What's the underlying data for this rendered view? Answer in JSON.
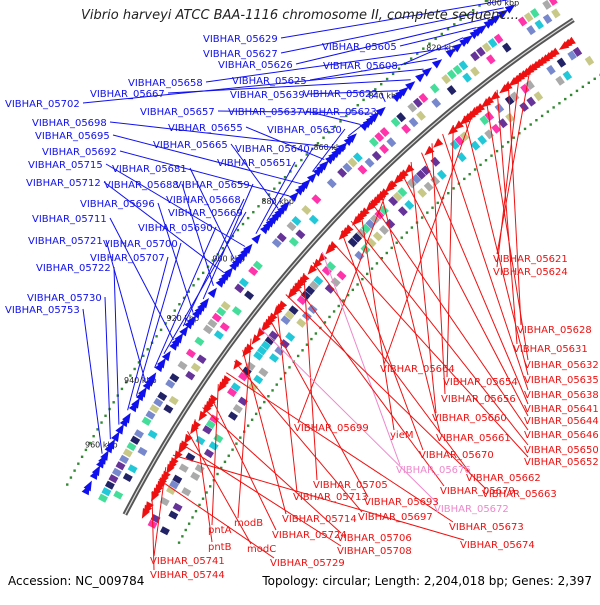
{
  "title": "Vibrio harveyi ATCC BAA-1116 chromosome II, complete sequenc...",
  "footer": {
    "accession": "Accession: NC_009784",
    "summary": "Topology: circular; Length: 2,204,018 bp; Genes: 2,397"
  },
  "colors": {
    "forward": "#1010ee",
    "reverse": "#ee1111",
    "pseudo": "#ee88cc",
    "axis": "#888888",
    "tick": "#338833",
    "feature_palette": [
      "#22c8d8",
      "#aaaaaa",
      "#ff33aa",
      "#7788cc",
      "#44dd99",
      "#222266",
      "#c8c888",
      "#663399"
    ]
  },
  "scale_labels": [
    "800 kbp",
    "820 kbp",
    "840 kbp",
    "860 kbp",
    "880 kbp",
    "900 kbp",
    "920 kbp",
    "940 kbp",
    "960 kbp"
  ],
  "forward_labels": [
    "VIBHAR_05629",
    "VIBHAR_05627",
    "VIBHAR_05626",
    "VIBHAR_05605",
    "VIBHAR_05608",
    "VIBHAR_05658",
    "VIBHAR_05625",
    "VIBHAR_05702",
    "VIBHAR_05667",
    "VIBHAR_05639",
    "VIBHAR_05622",
    "VIBHAR_05657",
    "VIBHAR_05637",
    "VIBHAR_05623",
    "VIBHAR_05698",
    "VIBHAR_05655",
    "VIBHAR_05630",
    "VIBHAR_05695",
    "VIBHAR_05692",
    "VIBHAR_05665",
    "VIBHAR_05640",
    "VIBHAR_05651",
    "VIBHAR_05715",
    "VIBHAR_05681",
    "VIBHAR_05712",
    "VIBHAR_05688",
    "VIBHAR_05659",
    "VIBHAR_05696",
    "VIBHAR_05668",
    "VIBHAR_05711",
    "VIBHAR_05669",
    "VIBHAR_05690",
    "VIBHAR_05721",
    "VIBHAR_05700",
    "VIBHAR_05707",
    "VIBHAR_05722",
    "VIBHAR_05730",
    "VIBHAR_05753"
  ],
  "reverse_labels": [
    "VIBHAR_05621",
    "VIBHAR_05624",
    "VIBHAR_05628",
    "VIBHAR_05631",
    "VIBHAR_05632",
    "VIBHAR_05664",
    "VIBHAR_05635",
    "VIBHAR_05654",
    "VIBHAR_05638",
    "VIBHAR_05656",
    "VIBHAR_05641",
    "VIBHAR_05660",
    "VIBHAR_05644",
    "VIBHAR_05699",
    "VIBHAR_05661",
    "VIBHAR_05646",
    "yieM",
    "VIBHAR_05650",
    "VIBHAR_05670",
    "VIBHAR_05652",
    "VIBHAR_05676",
    "VIBHAR_05662",
    "VIBHAR_05705",
    "VIBHAR_05679",
    "VIBHAR_05663",
    "VIBHAR_05713",
    "VIBHAR_05693",
    "VIBHAR_05672",
    "modB",
    "VIBHAR_05714",
    "VIBHAR_05697",
    "VIBHAR_05673",
    "pntA",
    "VIBHAR_05724",
    "VIBHAR_05706",
    "pntB",
    "modC",
    "VIBHAR_05708",
    "VIBHAR_05674",
    "VIBHAR_05741",
    "VIBHAR_05729",
    "VIBHAR_05744"
  ],
  "pseudo_labels": [
    "VIBHAR_05676",
    "VIBHAR_05672"
  ]
}
